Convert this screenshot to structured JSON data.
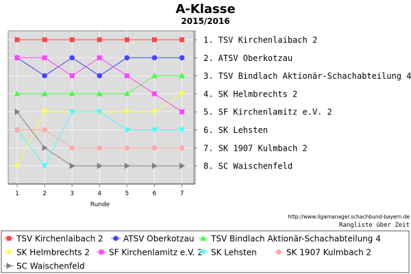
{
  "chart_data": {
    "type": "line",
    "title": "A-Klasse",
    "subtitle": "2015/2016",
    "xlabel": "Runde",
    "ylabel": "",
    "x": [
      1,
      2,
      3,
      4,
      5,
      6,
      7
    ],
    "ylim": [
      1,
      8
    ],
    "y_inverted": true,
    "grid": true,
    "legend_position": "bottom",
    "right_ranking": [
      "1. TSV Kirchenlaibach 2",
      "2. ATSV Oberkotzau",
      "3. TSV Bindlach Aktionär-Schachabteilung 4",
      "4. SK Helmbrechts 2",
      "5. SF Kirchenlamitz e.V. 2",
      "6. SK Lehsten",
      "7. SK 1907 Kulmbach 2",
      "8. SC Waischenfeld"
    ],
    "footer_url": "http://www.ligamanager.schachbund-bayern.de",
    "footer_caption": "Rangliste über Zeit",
    "series": [
      {
        "name": "TSV Kirchenlaibach 2",
        "color": "#ff4444",
        "marker": "square",
        "values": [
          1,
          1,
          1,
          1,
          1,
          1,
          1
        ]
      },
      {
        "name": "ATSV Oberkotzau",
        "color": "#4444ff",
        "marker": "circle",
        "values": [
          2,
          3,
          2,
          3,
          2,
          2,
          2
        ]
      },
      {
        "name": "TSV Bindlach Aktionär-Schachabteilung 4",
        "color": "#44ff44",
        "marker": "triangle-up",
        "values": [
          4,
          4,
          4,
          4,
          4,
          3,
          3
        ]
      },
      {
        "name": "SK Helmbrechts 2",
        "color": "#ffff44",
        "marker": "triangle-down",
        "values": [
          8,
          5,
          5,
          5,
          5,
          5,
          4
        ]
      },
      {
        "name": "SF Kirchenlamitz e.V. 2",
        "color": "#ff44ff",
        "marker": "square",
        "values": [
          2,
          2,
          3,
          2,
          3,
          4,
          5
        ]
      },
      {
        "name": "SK Lehsten",
        "color": "#44ffff",
        "marker": "triangle-down",
        "values": [
          6,
          8,
          5,
          5,
          6,
          6,
          6
        ]
      },
      {
        "name": "SK 1907 Kulmbach 2",
        "color": "#ffaaaa",
        "marker": "circle",
        "values": [
          6,
          6,
          7,
          7,
          7,
          7,
          7
        ]
      },
      {
        "name": "SC Waischenfeld",
        "color": "#808080",
        "marker": "triangle-right",
        "values": [
          5,
          7,
          8,
          8,
          8,
          8,
          8
        ]
      }
    ]
  }
}
